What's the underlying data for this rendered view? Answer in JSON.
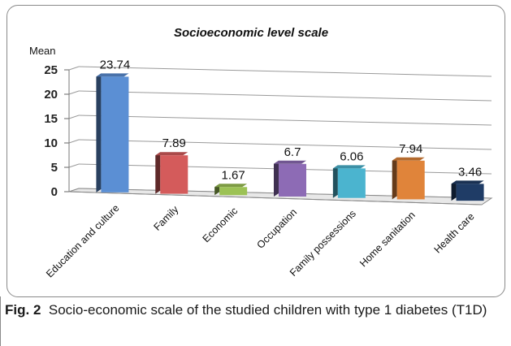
{
  "chart_data": {
    "type": "bar",
    "title": "Socioeconomic level scale",
    "ylabel": "Mean",
    "xlabel": "",
    "ylim": [
      0,
      25
    ],
    "yticks": [
      0,
      5,
      10,
      15,
      20,
      25
    ],
    "grid": true,
    "categories": [
      "Education and culture",
      "Family",
      "Economic",
      "Occupation",
      "Family possessions",
      "Home sanitation",
      "Health care"
    ],
    "values": [
      23.74,
      7.89,
      1.67,
      6.7,
      6.06,
      7.94,
      3.46
    ],
    "value_labels": [
      "23.74",
      "7.89",
      "1.67",
      "6.7",
      "6.06",
      "7.94",
      "3.46"
    ],
    "colors": [
      "#5b8fd4",
      "#d45b5b",
      "#9cc255",
      "#8d6bb5",
      "#4bb4cf",
      "#e0843a",
      "#1f3c66"
    ]
  },
  "caption": {
    "label": "Fig. 2",
    "text": "Socio-economic scale of the studied children with type 1 diabetes (T1D)"
  }
}
